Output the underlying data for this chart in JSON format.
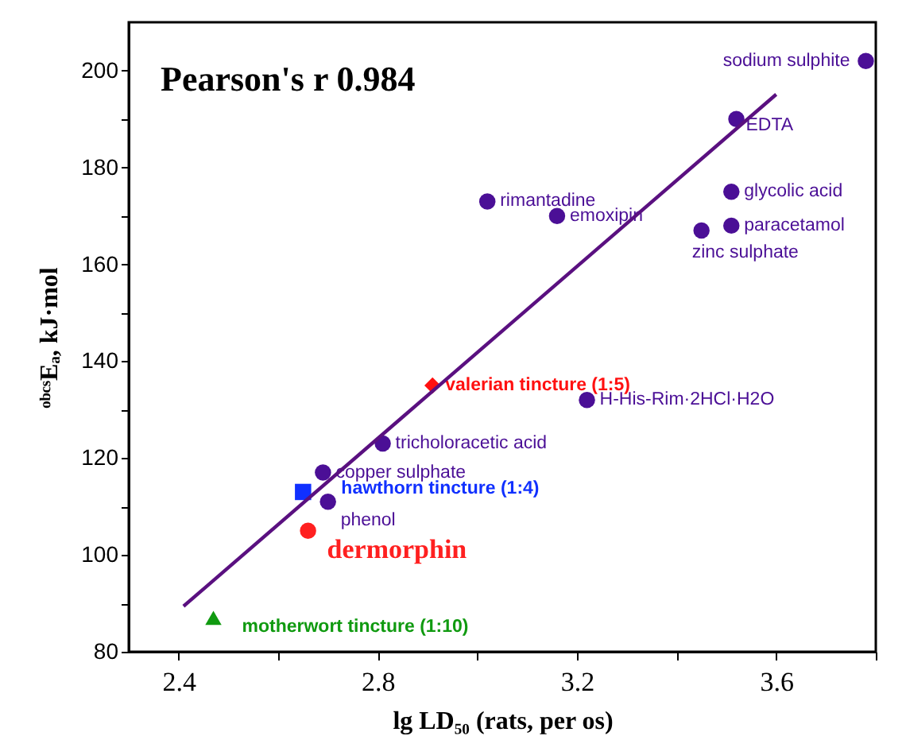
{
  "chart_data": {
    "type": "scatter",
    "xlabel": "lg LD₅₀ (rats, per os)",
    "ylabel": "ᵒᵇᶜˢEₐ, kJ·mol",
    "annotations": [
      "Pearson's r 0.984"
    ],
    "xlim": [
      2.3,
      3.8
    ],
    "ylim": [
      80,
      210
    ],
    "xticks": [
      2.4,
      {
        "value": 2.6,
        "label": null
      },
      2.8,
      {
        "value": 3.0,
        "label": null
      },
      3.2,
      {
        "value": 3.4,
        "label": null
      },
      3.6,
      {
        "value": 3.8,
        "label": null
      }
    ],
    "yticks": [
      80,
      {
        "value": 90,
        "label": null
      },
      100,
      {
        "value": 110,
        "label": null
      },
      120,
      {
        "value": 130,
        "label": null
      },
      140,
      {
        "value": 150,
        "label": null
      },
      160,
      {
        "value": 170,
        "label": null
      },
      180,
      {
        "value": 190,
        "label": null
      },
      200
    ],
    "grid": false,
    "series": [
      {
        "name": "sodium sulphite",
        "color": "#4b0f96",
        "marker": "circle",
        "x": [
          3.78
        ],
        "values": [
          202
        ]
      },
      {
        "name": "EDTA",
        "color": "#4b0f96",
        "marker": "circle",
        "x": [
          3.52
        ],
        "values": [
          190
        ]
      },
      {
        "name": "glycolic acid",
        "color": "#4b0f96",
        "marker": "circle",
        "x": [
          3.51
        ],
        "values": [
          175
        ]
      },
      {
        "name": "paracetamol",
        "color": "#4b0f96",
        "marker": "circle",
        "x": [
          3.51
        ],
        "values": [
          168
        ]
      },
      {
        "name": "zinc sulphate",
        "color": "#4b0f96",
        "marker": "circle",
        "x": [
          3.45
        ],
        "values": [
          167
        ]
      },
      {
        "name": "rimantadine",
        "color": "#4b0f96",
        "marker": "circle",
        "x": [
          3.02
        ],
        "values": [
          173
        ]
      },
      {
        "name": "emoxipin",
        "color": "#4b0f96",
        "marker": "circle",
        "x": [
          3.16
        ],
        "values": [
          170
        ]
      },
      {
        "name": "valerian tincture (1:5)",
        "color": "#ff1010",
        "marker": "diamond",
        "x": [
          2.91
        ],
        "values": [
          135
        ]
      },
      {
        "name": "H-His-Rim·2HCl·H2O",
        "color": "#4b0f96",
        "marker": "circle",
        "x": [
          3.22
        ],
        "values": [
          132
        ]
      },
      {
        "name": "tricholoracetic acid",
        "color": "#4b0f96",
        "marker": "circle",
        "x": [
          2.81
        ],
        "values": [
          123
        ]
      },
      {
        "name": "copper sulphate",
        "color": "#4b0f96",
        "marker": "circle",
        "x": [
          2.69
        ],
        "values": [
          117
        ]
      },
      {
        "name": "hawthorn tincture (1:4)",
        "color": "#1030ff",
        "marker": "square",
        "x": [
          2.65
        ],
        "values": [
          113
        ]
      },
      {
        "name": "phenol",
        "color": "#4b0f96",
        "marker": "circle",
        "x": [
          2.7
        ],
        "values": [
          111
        ]
      },
      {
        "name": "dermorphin",
        "color": "#ff2020",
        "marker": "circle",
        "x": [
          2.66
        ],
        "values": [
          105
        ]
      },
      {
        "name": "motherwort tincture (1:10)",
        "color": "#109a10",
        "marker": "triangle",
        "x": [
          2.47
        ],
        "values": [
          87
        ]
      },
      {
        "type": "line",
        "color": "#5a1080",
        "x": [
          2.41,
          3.6
        ],
        "values": [
          89.4,
          195.1
        ]
      }
    ]
  }
}
